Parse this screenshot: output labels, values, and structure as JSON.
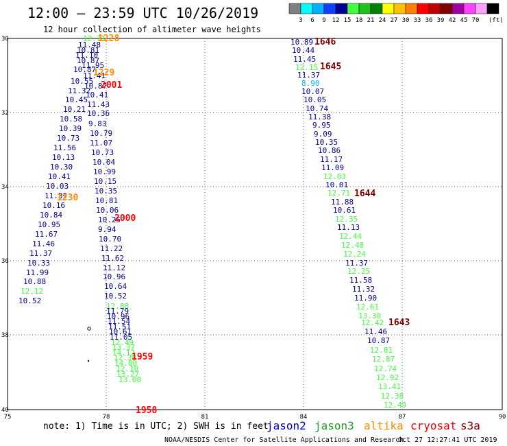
{
  "title": "12:00 – 23:59 UTC 10/26/2019",
  "subtitle": "12 hour collection of altimeter wave heights",
  "legend": {
    "unit": "(ft)",
    "swatches": [
      {
        "label": "",
        "color": "#808080"
      },
      {
        "label": "3",
        "color": "#00ffff"
      },
      {
        "label": "6",
        "color": "#00b0ff"
      },
      {
        "label": "9",
        "color": "#1040ff"
      },
      {
        "label": "12",
        "color": "#000090"
      },
      {
        "label": "15",
        "color": "#40ff40"
      },
      {
        "label": "18",
        "color": "#20c020"
      },
      {
        "label": "21",
        "color": "#008000"
      },
      {
        "label": "24",
        "color": "#ffff00"
      },
      {
        "label": "27",
        "color": "#ffc000"
      },
      {
        "label": "30",
        "color": "#ff8000"
      },
      {
        "label": "33",
        "color": "#ff0000"
      },
      {
        "label": "36",
        "color": "#c00000"
      },
      {
        "label": "39",
        "color": "#800000"
      },
      {
        "label": "42",
        "color": "#a000a0"
      },
      {
        "label": "45",
        "color": "#ff40ff"
      },
      {
        "label": "70",
        "color": "#ffa0ff"
      },
      {
        "label": "",
        "color": "#000000"
      }
    ]
  },
  "lat_labels": [
    "30",
    "32",
    "34",
    "36",
    "38",
    "40"
  ],
  "lon_labels": [
    "75",
    "78",
    "81",
    "84",
    "87",
    "90"
  ],
  "note": "note:  1) Time is in UTC;  2) SWH is in feet",
  "satellites": [
    {
      "name": "jason2",
      "color": "#0000cc"
    },
    {
      "name": "jason3",
      "color": "#20a020"
    },
    {
      "name": "altika",
      "color": "#ff8c00"
    },
    {
      "name": "cryosat",
      "color": "#ee0000"
    },
    {
      "name": "s3a",
      "color": "#800000"
    }
  ],
  "credit": "NOAA/NESDIS Center for Satellite Applications and Research",
  "timestamp": "Oct 27 12:27:41 UTC 2019",
  "colors": {
    "dark": "#000090",
    "light": "#40ff40",
    "cyan": "#00b0ff",
    "gold": "#ff8c00",
    "red": "#ff0000",
    "maroon": "#800000"
  },
  "track_left": [
    [
      "12.71",
      "light"
    ],
    [
      "11.48",
      "dark"
    ],
    [
      "10.81",
      "dark"
    ],
    [
      "11.10",
      "dark"
    ],
    [
      "10.87",
      "dark"
    ],
    [
      "11.95",
      "dark"
    ],
    [
      "10.87",
      "dark"
    ],
    [
      "11.41",
      "dark"
    ],
    [
      "10.55",
      "dark"
    ],
    [
      "10.87",
      "dark"
    ],
    [
      "11.32",
      "dark"
    ],
    [
      "10.41",
      "dark"
    ],
    [
      "10.45",
      "dark"
    ],
    [
      "11.43",
      "dark"
    ],
    [
      "10.21",
      "dark"
    ],
    [
      "10.36",
      "dark"
    ],
    [
      "10.58",
      "dark"
    ],
    [
      "9.83",
      "dark"
    ],
    [
      "10.39",
      "dark"
    ],
    [
      "10.79",
      "dark"
    ],
    [
      "10.73",
      "dark"
    ],
    [
      "11.07",
      "dark"
    ],
    [
      "11.56",
      "dark"
    ],
    [
      "10.73",
      "dark"
    ],
    [
      "10.13",
      "dark"
    ],
    [
      "10.04",
      "dark"
    ],
    [
      "10.30",
      "dark"
    ],
    [
      "10.99",
      "dark"
    ],
    [
      "10.41",
      "dark"
    ],
    [
      "10.15",
      "dark"
    ],
    [
      "10.03",
      "dark"
    ],
    [
      "10.35",
      "dark"
    ],
    [
      "11.39",
      "dark"
    ],
    [
      "10.81",
      "dark"
    ],
    [
      "10.16",
      "dark"
    ],
    [
      "10.06",
      "dark"
    ],
    [
      "10.84",
      "dark"
    ],
    [
      "10.25",
      "dark"
    ],
    [
      "10.95",
      "dark"
    ],
    [
      "9.94",
      "dark"
    ],
    [
      "11.67",
      "dark"
    ],
    [
      "10.70",
      "dark"
    ],
    [
      "11.46",
      "dark"
    ],
    [
      "11.22",
      "dark"
    ],
    [
      "11.37",
      "dark"
    ],
    [
      "11.62",
      "dark"
    ],
    [
      "10.33",
      "dark"
    ],
    [
      "11.12",
      "dark"
    ],
    [
      "11.99",
      "dark"
    ],
    [
      "10.96",
      "dark"
    ],
    [
      "10.88",
      "dark"
    ],
    [
      "10.64",
      "dark"
    ],
    [
      "12.12",
      "light"
    ],
    [
      "10.52",
      "dark"
    ],
    [
      "10.52",
      "dark"
    ],
    [
      "12.88",
      "light"
    ],
    [
      "11.79",
      "dark"
    ],
    [
      "10.96",
      "dark"
    ],
    [
      "11.54",
      "dark"
    ],
    [
      "11.51",
      "dark"
    ],
    [
      "10.61",
      "dark"
    ],
    [
      "11.05",
      "dark"
    ],
    [
      "12.49",
      "light"
    ],
    [
      "13.37",
      "light"
    ],
    [
      "14.12",
      "light"
    ],
    [
      "12.30",
      "light"
    ],
    [
      "14.00",
      "light"
    ],
    [
      "12.10",
      "light"
    ],
    [
      "13.27",
      "light"
    ],
    [
      "13.08",
      "light"
    ]
  ],
  "track_right": [
    [
      "10.89",
      "dark"
    ],
    [
      "10.44",
      "dark"
    ],
    [
      "11.45",
      "dark"
    ],
    [
      "12.15",
      "light"
    ],
    [
      "11.37",
      "dark"
    ],
    [
      "8.90",
      "cyan"
    ],
    [
      "10.07",
      "dark"
    ],
    [
      "10.05",
      "dark"
    ],
    [
      "10.74",
      "dark"
    ],
    [
      "11.38",
      "dark"
    ],
    [
      "9.95",
      "dark"
    ],
    [
      "9.09",
      "dark"
    ],
    [
      "10.35",
      "dark"
    ],
    [
      "10.86",
      "dark"
    ],
    [
      "11.17",
      "dark"
    ],
    [
      "11.09",
      "dark"
    ],
    [
      "12.03",
      "light"
    ],
    [
      "10.01",
      "dark"
    ],
    [
      "12.71",
      "light"
    ],
    [
      "11.88",
      "dark"
    ],
    [
      "10.61",
      "dark"
    ],
    [
      "12.35",
      "light"
    ],
    [
      "11.13",
      "dark"
    ],
    [
      "12.44",
      "light"
    ],
    [
      "12.48",
      "light"
    ],
    [
      "12.24",
      "light"
    ],
    [
      "11.37",
      "dark"
    ],
    [
      "12.25",
      "light"
    ],
    [
      "11.58",
      "dark"
    ],
    [
      "11.32",
      "dark"
    ],
    [
      "11.90",
      "dark"
    ],
    [
      "12.61",
      "light"
    ],
    [
      "13.30",
      "light"
    ],
    [
      "12.42",
      "light"
    ],
    [
      "11.46",
      "dark"
    ],
    [
      "10.87",
      "dark"
    ],
    [
      "12.81",
      "light"
    ],
    [
      "12.87",
      "light"
    ],
    [
      "12.74",
      "light"
    ],
    [
      "12.92",
      "light"
    ],
    [
      "13.41",
      "light"
    ],
    [
      "12.38",
      "light"
    ],
    [
      "12.49",
      "light"
    ]
  ],
  "time_labels": [
    [
      "1228",
      "gold"
    ],
    [
      "1229",
      "gold"
    ],
    [
      "2001",
      "red"
    ],
    [
      "1230",
      "gold"
    ],
    [
      "2000",
      "red"
    ],
    [
      "1959",
      "red"
    ],
    [
      "1958",
      "red"
    ],
    [
      "1646",
      "maroon"
    ],
    [
      "1645",
      "maroon"
    ],
    [
      "1644",
      "maroon"
    ],
    [
      "1643",
      "maroon"
    ]
  ]
}
